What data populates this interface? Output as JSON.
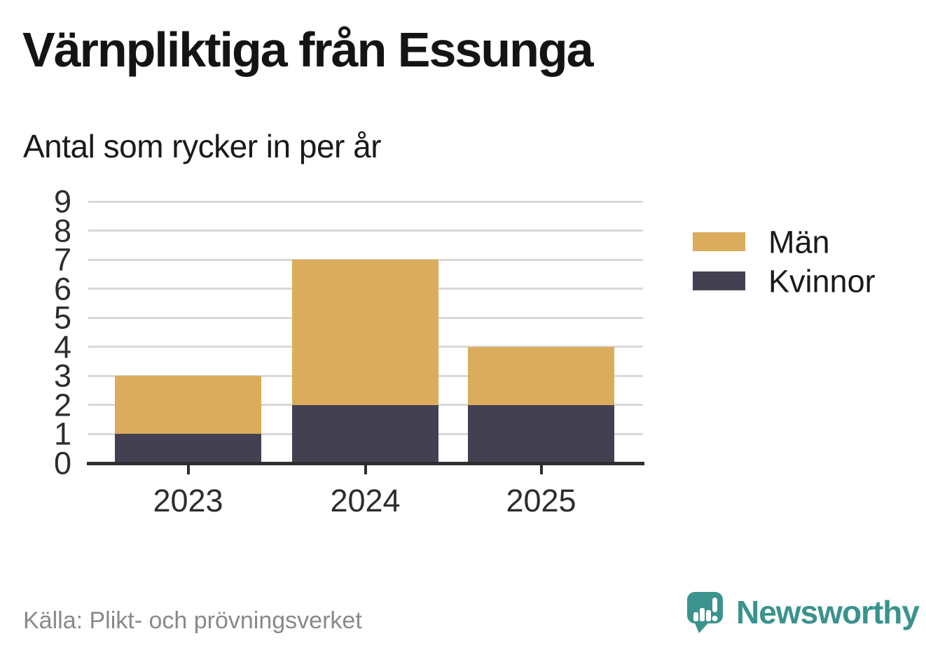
{
  "header": {
    "title": "Värnpliktiga från Essunga",
    "subtitle": "Antal som rycker in per år"
  },
  "footer": {
    "source": "Källa: Plikt- och prövningsverket",
    "brand": "Newsworthy"
  },
  "colors": {
    "men": "#DBAC5C",
    "women": "#434151",
    "grid": "#D9D9D9",
    "axis": "#2E2E32",
    "tick_text": "#2D2D2D",
    "title_text": "#141414",
    "source_text": "#898989",
    "brand_teal": "#3A938C",
    "background": "#FFFFFF"
  },
  "legend": {
    "items": [
      {
        "label": "Män",
        "color": "#DBAC5C"
      },
      {
        "label": "Kvinnor",
        "color": "#434151"
      }
    ]
  },
  "chart_data": {
    "type": "bar",
    "stacked": true,
    "title": "Värnpliktiga från Essunga",
    "subtitle": "Antal som rycker in per år",
    "categories": [
      "2023",
      "2024",
      "2025"
    ],
    "series": [
      {
        "name": "Kvinnor",
        "values": [
          1,
          2,
          2
        ],
        "color": "#434151"
      },
      {
        "name": "Män",
        "values": [
          2,
          5,
          2
        ],
        "color": "#DBAC5C"
      }
    ],
    "totals": [
      3,
      7,
      4
    ],
    "xlabel": "",
    "ylabel": "",
    "ylim": [
      0,
      9
    ],
    "yticks": [
      0,
      1,
      2,
      3,
      4,
      5,
      6,
      7,
      8,
      9
    ],
    "grid": "horizontal",
    "legend_position": "right",
    "source": "Källa: Plikt- och prövningsverket"
  }
}
